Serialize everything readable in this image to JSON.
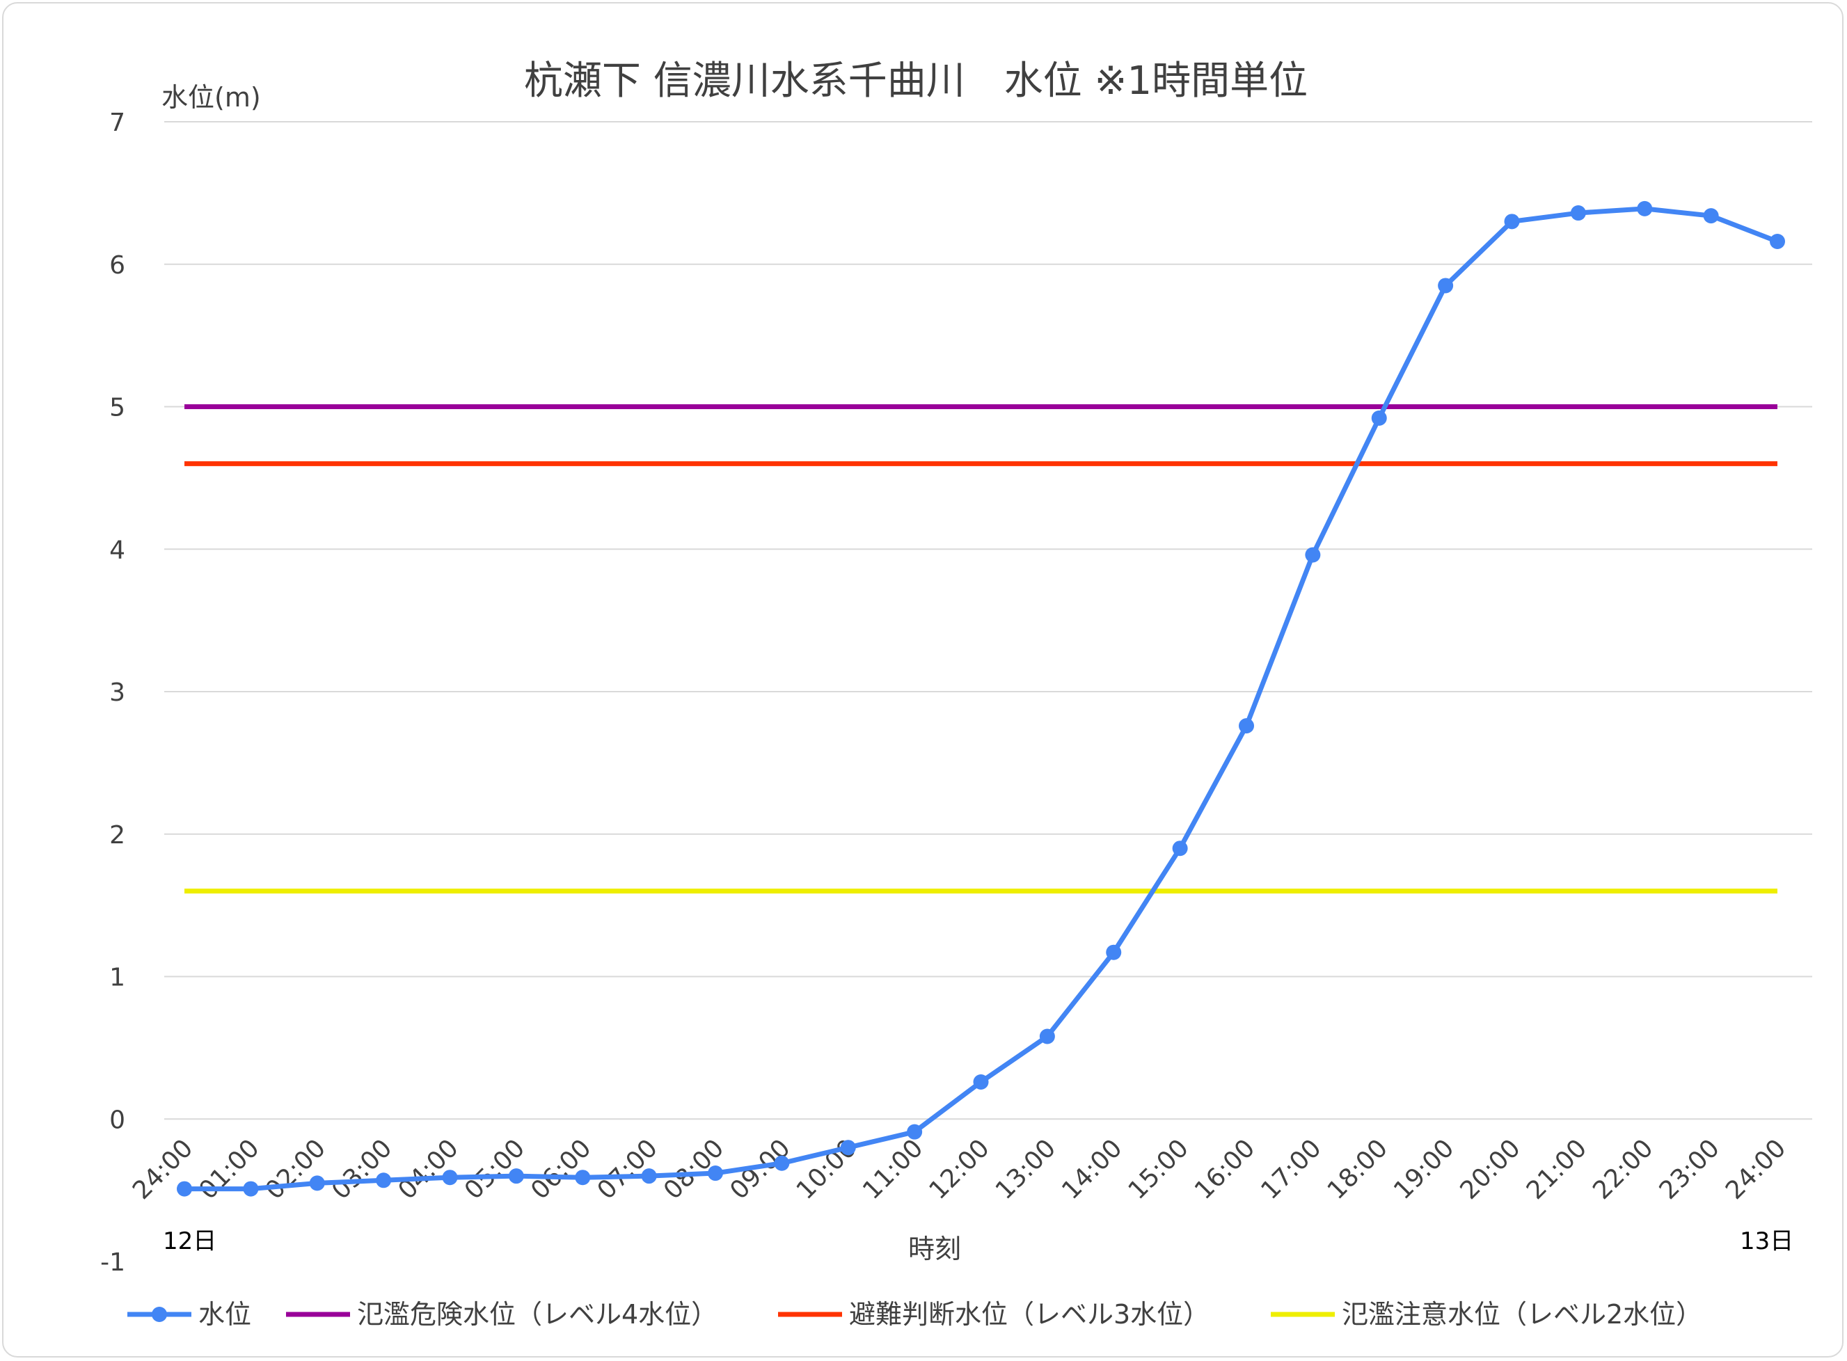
{
  "chart_data": {
    "type": "line",
    "title": "杭瀬下 信濃川水系千曲川　水位 ※1時間単位",
    "ylabel": "水位(m)",
    "xlabel": "時刻",
    "ylim": [
      -1,
      7
    ],
    "yticks": [
      "-1",
      "0",
      "1",
      "2",
      "3",
      "4",
      "5",
      "6",
      "7"
    ],
    "grid": true,
    "legend_position": "bottom",
    "categories": [
      "24:00",
      "01:00",
      "02:00",
      "03:00",
      "04:00",
      "05:00",
      "06:00",
      "07:00",
      "08:00",
      "09:00",
      "10:00",
      "11:00",
      "12:00",
      "13:00",
      "14:00",
      "15:00",
      "16:00",
      "17:00",
      "18:00",
      "19:00",
      "20:00",
      "21:00",
      "22:00",
      "23:00",
      "24:00"
    ],
    "date_start": "12日",
    "date_end": "13日",
    "series": [
      {
        "name": "水位",
        "color": "#4285f4",
        "markers": true,
        "values": [
          -0.49,
          -0.49,
          -0.45,
          -0.43,
          -0.41,
          -0.4,
          -0.41,
          -0.4,
          -0.38,
          -0.31,
          -0.2,
          -0.09,
          0.26,
          0.58,
          1.17,
          1.9,
          2.76,
          3.96,
          4.92,
          5.85,
          6.3,
          6.36,
          6.39,
          6.34,
          6.16
        ]
      },
      {
        "name": "氾濫危険水位（レベル4水位）",
        "color": "#990099",
        "markers": false,
        "constant": 5.0
      },
      {
        "name": "避難判断水位（レベル3水位）",
        "color": "#ff3300",
        "markers": false,
        "constant": 4.6
      },
      {
        "name": "氾濫注意水位（レベル2水位）",
        "color": "#eeee00",
        "markers": false,
        "constant": 1.6
      }
    ]
  }
}
